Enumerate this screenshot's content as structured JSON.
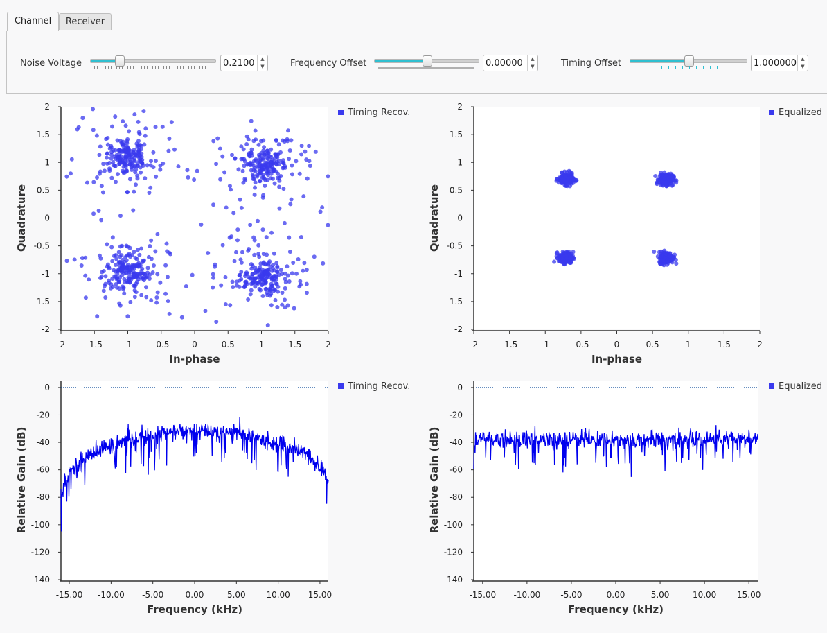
{
  "tabs": [
    {
      "label": "Channel",
      "active": true
    },
    {
      "label": "Receiver",
      "active": false
    }
  ],
  "controls": {
    "noise": {
      "label": "Noise Voltage",
      "value": "0.2100",
      "slider_fraction": 0.23
    },
    "freq": {
      "label": "Frequency Offset",
      "value": "0.00000",
      "slider_fraction": 0.5
    },
    "timing": {
      "label": "Timing Offset",
      "value": "1.000000",
      "slider_fraction": 0.5
    }
  },
  "colors": {
    "accent": "#2fbfd0",
    "series": "#0000ee",
    "scatter": "#3a3aee"
  },
  "chart_data": [
    {
      "type": "scatter",
      "title": "",
      "xlabel": "In-phase",
      "ylabel": "Quadrature",
      "xlim": [
        -2,
        2
      ],
      "ylim": [
        -2,
        2
      ],
      "xticks": [
        "-2",
        "-1.5",
        "-1",
        "-0.5",
        "0",
        "0.5",
        "1",
        "1.5",
        "2"
      ],
      "yticks": [
        "2",
        "1.5",
        "1",
        "0.5",
        "0",
        "-0.5",
        "-1",
        "-1.5",
        "-2"
      ],
      "legend": {
        "name": "Timing Recov.",
        "placement": "top-right"
      },
      "description": "Noisy QPSK constellation, 4 diffuse clusters near (±1, ±1)",
      "centers": [
        [
          -1,
          1.1
        ],
        [
          1.05,
          0.95
        ],
        [
          -1,
          -0.95
        ],
        [
          1,
          -1.05
        ]
      ],
      "spread": 0.42
    },
    {
      "type": "scatter",
      "title": "",
      "xlabel": "In-phase",
      "ylabel": "Quadrature",
      "xlim": [
        -2,
        2
      ],
      "ylim": [
        -2,
        2
      ],
      "xticks": [
        "-2",
        "-1.5",
        "-1",
        "-0.5",
        "0",
        "0.5",
        "1",
        "1.5",
        "2"
      ],
      "yticks": [
        "2",
        "1.5",
        "1",
        "0.5",
        "0",
        "-0.5",
        "-1",
        "-1.5",
        "-2"
      ],
      "legend": {
        "name": "Equalized",
        "placement": "top-right"
      },
      "description": "Equalized QPSK constellation, 4 tight clusters near (±0.7, ±0.7)",
      "centers": [
        [
          -0.71,
          0.7
        ],
        [
          0.69,
          0.69
        ],
        [
          -0.71,
          -0.71
        ],
        [
          0.69,
          -0.71
        ]
      ],
      "spread": 0.05
    },
    {
      "type": "line",
      "title": "",
      "xlabel": "Frequency (kHz)",
      "ylabel": "Relative Gain (dB)",
      "xlim": [
        -16,
        16
      ],
      "ylim": [
        -140,
        5
      ],
      "xticks": [
        "-15.00",
        "-10.00",
        "-5.00",
        "0.00",
        "5.00",
        "10.00",
        "15.00"
      ],
      "yticks": [
        "0",
        "-20",
        "-40",
        "-60",
        "-80",
        "-100",
        "-120",
        "-140"
      ],
      "legend": {
        "name": "Timing Recov.",
        "placement": "top-right"
      },
      "reference_line_db": 0,
      "envelope": [
        [
          -16,
          -78
        ],
        [
          -15,
          -62
        ],
        [
          -13,
          -50
        ],
        [
          -10,
          -42
        ],
        [
          -6,
          -36
        ],
        [
          -2,
          -32
        ],
        [
          2,
          -32
        ],
        [
          5,
          -32
        ],
        [
          8,
          -38
        ],
        [
          12,
          -44
        ],
        [
          14,
          -52
        ],
        [
          15.5,
          -62
        ],
        [
          16,
          -72
        ]
      ]
    },
    {
      "type": "line",
      "title": "",
      "xlabel": "Frequency (kHz)",
      "ylabel": "Relative Gain (dB)",
      "xlim": [
        -16,
        16
      ],
      "ylim": [
        -140,
        5
      ],
      "xticks": [
        "-15.00",
        "-10.00",
        "-5.00",
        "0.00",
        "5.00",
        "10.00",
        "15.00"
      ],
      "yticks": [
        "0",
        "-20",
        "-40",
        "-60",
        "-80",
        "-100",
        "-120",
        "-140"
      ],
      "legend": {
        "name": "Equalized",
        "placement": "top-right"
      },
      "reference_line_db": 0,
      "envelope": [
        [
          -16,
          -38
        ],
        [
          16,
          -38
        ]
      ]
    }
  ]
}
